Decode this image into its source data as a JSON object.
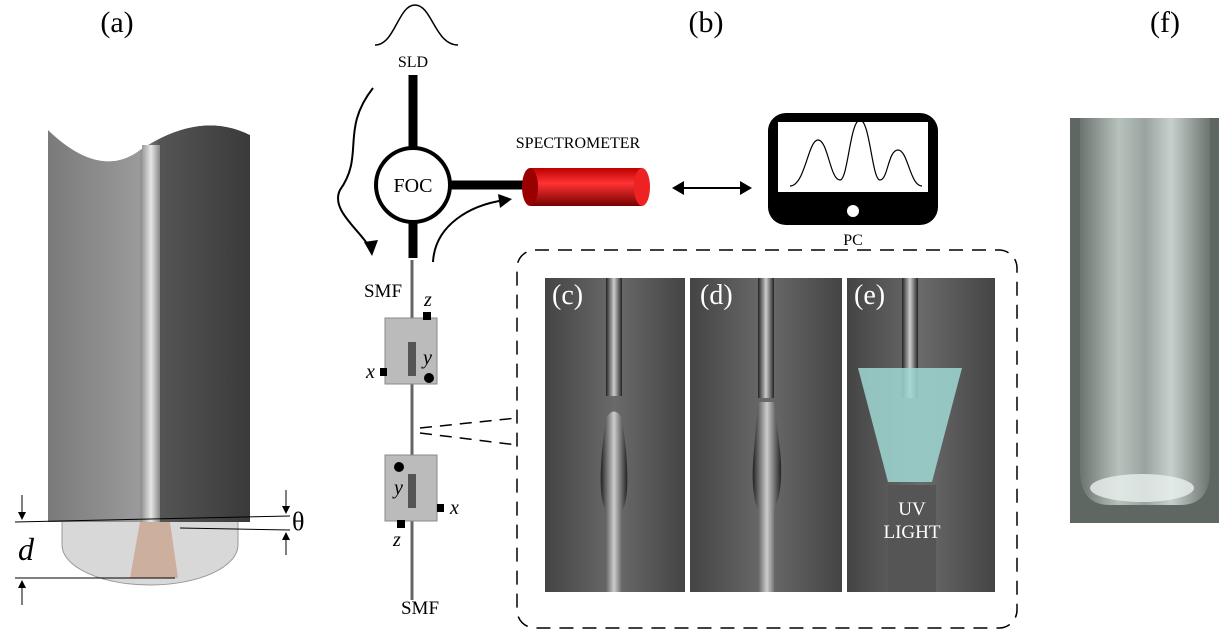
{
  "panel_a": {
    "label": "(a)",
    "depth_symbol": "d",
    "angle_symbol": "θ"
  },
  "panel_b": {
    "label": "(b)",
    "source": "SLD",
    "coupler": "FOC",
    "spectrometer": "SPECTROMETER",
    "computer": "PC",
    "fiber_top": "SMF",
    "fiber_bottom": "SMF",
    "stage_top": {
      "z": "z",
      "y": "y",
      "x": "x"
    },
    "stage_bottom": {
      "z": "z",
      "y": "y",
      "x": "x"
    }
  },
  "panel_c": {
    "label": "(c)"
  },
  "panel_d": {
    "label": "(d)"
  },
  "panel_e": {
    "label": "(e)",
    "light_line1": "UV",
    "light_line2": "LIGHT"
  },
  "panel_f": {
    "label": "(f)"
  }
}
